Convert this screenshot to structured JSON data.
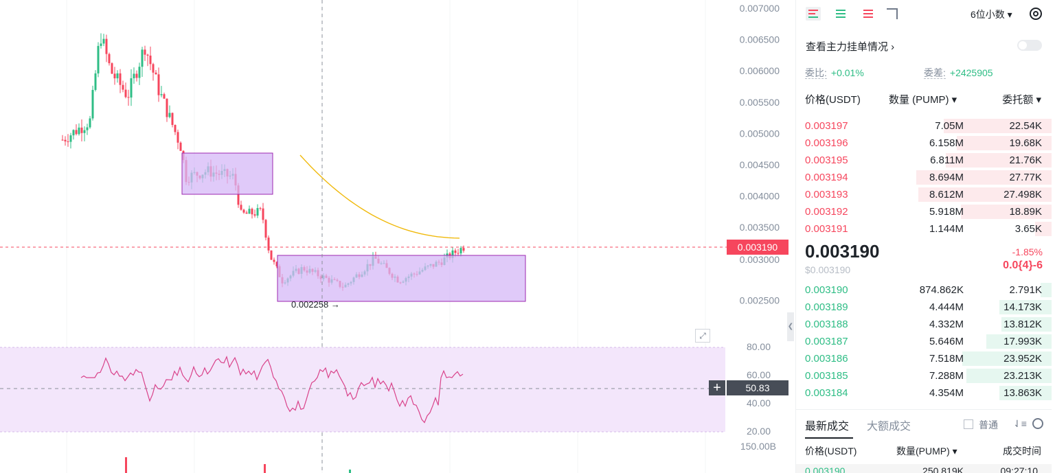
{
  "chart": {
    "price_axis": [
      "0.007000",
      "0.006500",
      "0.006000",
      "0.005500",
      "0.005000",
      "0.004500",
      "0.004000",
      "0.003500",
      "0.003000",
      "0.002500"
    ],
    "current_price_label": "0.003190",
    "low_marker": "0.002258 →",
    "rsi_axis": [
      "80.00",
      "60.00",
      "40.00",
      "20.00"
    ],
    "rsi_value": "50.83",
    "volume_axis": "150.00B",
    "colors": {
      "up": "#2ebd85",
      "down": "#f6465d",
      "ma": "#f0b90b",
      "rsi": "#d9428a",
      "box_fill": "#d5b8f7",
      "box_stroke": "#9c27b0",
      "rsi_band": "#f3e6fb"
    }
  },
  "panel": {
    "toolbar": {
      "decimals": "6位小数 ▾"
    },
    "main_orders": "查看主力挂单情况 ›",
    "ratio": {
      "label": "委比:",
      "value": "+0.01%"
    },
    "diff": {
      "label": "委差:",
      "value": "+2425905"
    },
    "headers": {
      "price": "价格(USDT)",
      "qty": "数量 (PUMP) ▾",
      "total": "委托额 ▾"
    },
    "asks": [
      {
        "price": "0.003197",
        "qty": "7.05M",
        "total": "22.54K",
        "depth": 0.58
      },
      {
        "price": "0.003196",
        "qty": "6.158M",
        "total": "19.68K",
        "depth": 0.51
      },
      {
        "price": "0.003195",
        "qty": "6.811M",
        "total": "21.76K",
        "depth": 0.57
      },
      {
        "price": "0.003194",
        "qty": "8.694M",
        "total": "27.77K",
        "depth": 0.73
      },
      {
        "price": "0.003193",
        "qty": "8.612M",
        "total": "27.498K",
        "depth": 0.72
      },
      {
        "price": "0.003192",
        "qty": "5.918M",
        "total": "18.89K",
        "depth": 0.49
      },
      {
        "price": "0.003191",
        "qty": "1.144M",
        "total": "3.65K",
        "depth": 0.09
      }
    ],
    "last": {
      "price": "0.003190",
      "usd": "$0.003190",
      "change": "-1.85%",
      "delta": "0.0{4}-6"
    },
    "bids": [
      {
        "price": "0.003190",
        "qty": "874.862K",
        "total": "2.791K",
        "depth": 0.06
      },
      {
        "price": "0.003189",
        "qty": "4.444M",
        "total": "14.173K",
        "depth": 0.28
      },
      {
        "price": "0.003188",
        "qty": "4.332M",
        "total": "13.812K",
        "depth": 0.27
      },
      {
        "price": "0.003187",
        "qty": "5.646M",
        "total": "17.993K",
        "depth": 0.35
      },
      {
        "price": "0.003186",
        "qty": "7.518M",
        "total": "23.952K",
        "depth": 0.48
      },
      {
        "price": "0.003185",
        "qty": "7.288M",
        "total": "23.213K",
        "depth": 0.46
      },
      {
        "price": "0.003184",
        "qty": "4.354M",
        "total": "13.863K",
        "depth": 0.28
      }
    ],
    "trades": {
      "tab_latest": "最新成交",
      "tab_large": "大额成交",
      "filter_label": "普通",
      "headers": {
        "price": "价格(USDT)",
        "qty": "数量(PUMP) ▾",
        "time": "成交时间"
      },
      "first": {
        "price": "0.003190",
        "qty": "250.819K",
        "time": "09:27:10"
      }
    }
  }
}
